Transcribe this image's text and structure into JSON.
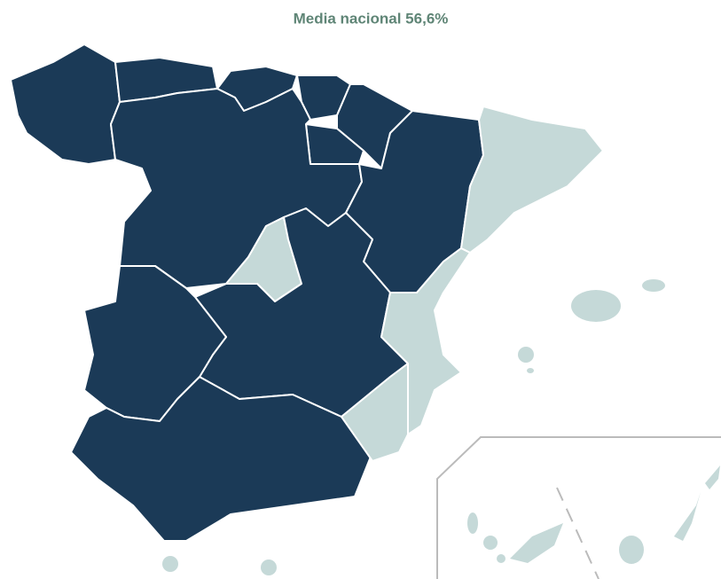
{
  "title": "Media nacional 56,6%"
}
